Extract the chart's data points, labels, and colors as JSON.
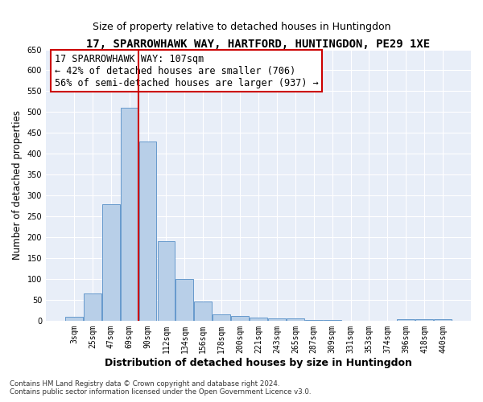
{
  "title": "17, SPARROWHAWK WAY, HARTFORD, HUNTINGDON, PE29 1XE",
  "subtitle": "Size of property relative to detached houses in Huntingdon",
  "xlabel": "Distribution of detached houses by size in Huntingdon",
  "ylabel": "Number of detached properties",
  "categories": [
    "3sqm",
    "25sqm",
    "47sqm",
    "69sqm",
    "90sqm",
    "112sqm",
    "134sqm",
    "156sqm",
    "178sqm",
    "200sqm",
    "221sqm",
    "243sqm",
    "265sqm",
    "287sqm",
    "309sqm",
    "331sqm",
    "353sqm",
    "374sqm",
    "396sqm",
    "418sqm",
    "440sqm"
  ],
  "values": [
    10,
    65,
    280,
    510,
    430,
    190,
    100,
    46,
    16,
    11,
    8,
    5,
    5,
    2,
    2,
    0,
    0,
    0,
    3,
    3,
    3
  ],
  "bar_color": "#b8cfe8",
  "bar_edge_color": "#6699cc",
  "vline_color": "#cc0000",
  "vline_pos": 3.5,
  "annotation_text": "17 SPARROWHAWK WAY: 107sqm\n← 42% of detached houses are smaller (706)\n56% of semi-detached houses are larger (937) →",
  "box_color": "#cc0000",
  "ylim": [
    0,
    650
  ],
  "yticks": [
    0,
    50,
    100,
    150,
    200,
    250,
    300,
    350,
    400,
    450,
    500,
    550,
    600,
    650
  ],
  "bg_color": "#e8eef8",
  "footer1": "Contains HM Land Registry data © Crown copyright and database right 2024.",
  "footer2": "Contains public sector information licensed under the Open Government Licence v3.0.",
  "title_fontsize": 10,
  "subtitle_fontsize": 9,
  "tick_fontsize": 7,
  "ylabel_fontsize": 8.5,
  "xlabel_fontsize": 9,
  "annotation_fontsize": 8.5
}
